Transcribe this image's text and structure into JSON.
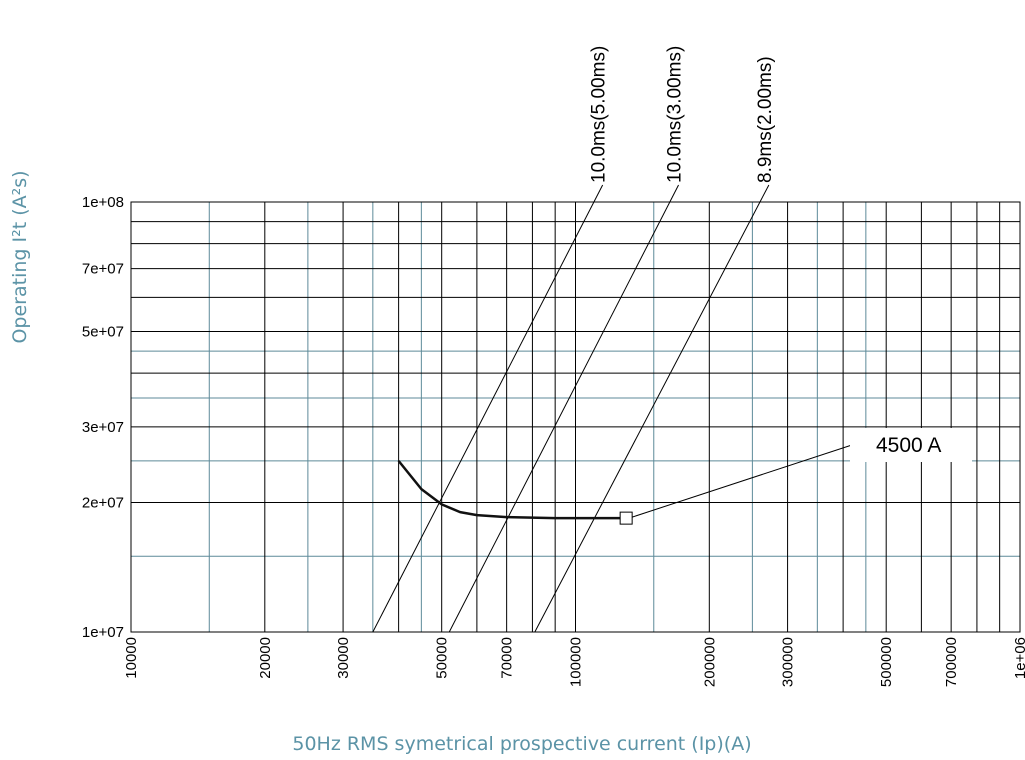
{
  "chart_data": {
    "type": "line",
    "xlabel": "50Hz RMS symetrical prospective current (Ip)(A)",
    "ylabel": "Operating I²t (A²s)",
    "xscale": "log",
    "yscale": "log",
    "xlim": [
      10000,
      1000000
    ],
    "ylim": [
      10000000,
      100000000
    ],
    "grid": true,
    "x_ticks": [
      {
        "value": 10000,
        "label": "10000"
      },
      {
        "value": 20000,
        "label": "20000"
      },
      {
        "value": 30000,
        "label": "30000"
      },
      {
        "value": 50000,
        "label": "50000"
      },
      {
        "value": 70000,
        "label": "70000"
      },
      {
        "value": 100000,
        "label": "100000"
      },
      {
        "value": 200000,
        "label": "200000"
      },
      {
        "value": 300000,
        "label": "300000"
      },
      {
        "value": 500000,
        "label": "500000"
      },
      {
        "value": 700000,
        "label": "700000"
      },
      {
        "value": 1000000,
        "label": "1e+06"
      }
    ],
    "y_ticks": [
      {
        "value": 10000000,
        "label": "1e+07"
      },
      {
        "value": 20000000,
        "label": "2e+07"
      },
      {
        "value": 30000000,
        "label": "3e+07"
      },
      {
        "value": 50000000,
        "label": "5e+07"
      },
      {
        "value": 70000000,
        "label": "7e+07"
      },
      {
        "value": 100000000,
        "label": "1e+08"
      }
    ],
    "x_grid_major": [
      10000,
      20000,
      30000,
      40000,
      50000,
      60000,
      70000,
      80000,
      90000,
      100000,
      200000,
      300000,
      400000,
      500000,
      600000,
      700000,
      800000,
      900000,
      1000000
    ],
    "x_grid_minor": [
      15000,
      25000,
      35000,
      45000,
      150000,
      250000,
      350000,
      450000
    ],
    "y_grid_major": [
      10000000,
      20000000,
      30000000,
      40000000,
      50000000,
      60000000,
      70000000,
      80000000,
      90000000,
      100000000
    ],
    "y_grid_minor": [
      15000000,
      25000000,
      35000000,
      45000000
    ],
    "reference_lines": [
      {
        "label": "10.0ms(5.00ms)",
        "points": [
          [
            35000,
            10000000
          ],
          [
            110000,
            100000000
          ]
        ]
      },
      {
        "label": "10.0ms(3.00ms)",
        "points": [
          [
            52000,
            10000000
          ],
          [
            163000,
            100000000
          ]
        ]
      },
      {
        "label": "8.9ms(2.00ms)",
        "points": [
          [
            81000,
            10000000
          ],
          [
            260000,
            100000000
          ]
        ]
      }
    ],
    "series": [
      {
        "points": [
          [
            40000,
            25000000
          ],
          [
            45000,
            21500000
          ],
          [
            50000,
            19800000
          ],
          [
            55000,
            19000000
          ],
          [
            60000,
            18700000
          ],
          [
            70000,
            18500000
          ],
          [
            90000,
            18400000
          ],
          [
            110000,
            18400000
          ],
          [
            130000,
            18400000
          ]
        ]
      }
    ],
    "marker": {
      "x": 130000,
      "y": 18400000
    },
    "annotation": {
      "text": "4500 A",
      "anchor": [
        130000,
        18400000
      ]
    }
  }
}
